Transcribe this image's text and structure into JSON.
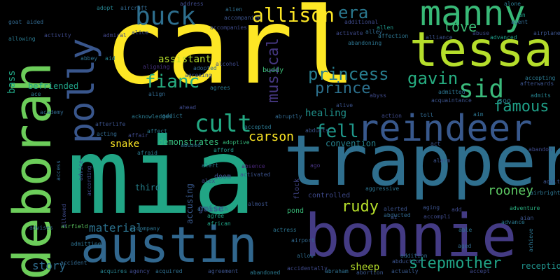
{
  "words": [
    {
      "text": "carl",
      "color": "#fde725"
    },
    {
      "text": "mia",
      "color": "#21a585"
    },
    {
      "text": "trapper",
      "color": "#2f6f8e"
    },
    {
      "text": "bonnie",
      "color": "#443b84"
    },
    {
      "text": "austin",
      "color": "#31678e"
    },
    {
      "text": "deborah",
      "color": "#6ccd5a"
    },
    {
      "text": "tessa",
      "color": "#b5de2b"
    },
    {
      "text": "reindeer",
      "color": "#38588c"
    },
    {
      "text": "polly",
      "color": "#39568c"
    },
    {
      "text": "manny",
      "color": "#38b977"
    },
    {
      "text": "buck",
      "color": "#2e6f8e"
    },
    {
      "text": "allison",
      "color": "#fde725"
    },
    {
      "text": "sid",
      "color": "#3ab97b"
    },
    {
      "text": "era",
      "color": "#2a788e"
    },
    {
      "text": "princess",
      "color": "#287d8e"
    },
    {
      "text": "prince",
      "color": "#2c718e"
    },
    {
      "text": "cult",
      "color": "#23a983"
    },
    {
      "text": "fianc",
      "color": "#27ad81"
    },
    {
      "text": "musical",
      "color": "#453781"
    },
    {
      "text": "gavin",
      "color": "#26ad81"
    },
    {
      "text": "love",
      "color": "#3bbb75"
    },
    {
      "text": "famous",
      "color": "#1fa088"
    },
    {
      "text": "fell",
      "color": "#1f988b"
    },
    {
      "text": "carson",
      "color": "#fde725"
    },
    {
      "text": "assistant",
      "color": "#b5de2b"
    },
    {
      "text": "healing",
      "color": "#20928c"
    },
    {
      "text": "rudy",
      "color": "#b5de2b"
    },
    {
      "text": "stepmother",
      "color": "#20a386"
    },
    {
      "text": "rooney",
      "color": "#5cc863"
    },
    {
      "text": "convention",
      "color": "#26828e"
    },
    {
      "text": "snake",
      "color": "#fde725"
    },
    {
      "text": "material",
      "color": "#2c728e"
    },
    {
      "text": "story",
      "color": "#2f6c8e"
    },
    {
      "text": "accusing",
      "color": "#38588c"
    },
    {
      "text": "guise",
      "color": "#3e4a89"
    },
    {
      "text": "sheep",
      "color": "#b5de2b"
    },
    {
      "text": "reception",
      "color": "#20928c"
    },
    {
      "text": "bass",
      "color": "#21a685"
    },
    {
      "text": "befriended",
      "color": "#1fa287"
    },
    {
      "text": "demonstrates",
      "color": "#35b779"
    },
    {
      "text": "third",
      "color": "#26828e"
    },
    {
      "text": "doom",
      "color": "#3b528b"
    },
    {
      "text": "controlled",
      "color": "#3e4989"
    },
    {
      "text": "pond",
      "color": "#38b977"
    },
    {
      "text": "flock",
      "color": "#414487"
    },
    {
      "text": "aggressive",
      "color": "#2c728e"
    },
    {
      "text": "adventure",
      "color": "#29af7f"
    },
    {
      "text": "ago",
      "color": "#46337e"
    },
    {
      "text": "act",
      "color": "#3b528b"
    },
    {
      "text": "airfield",
      "color": "#5ec962"
    },
    {
      "text": "admitting",
      "color": "#2d708e"
    },
    {
      "text": "advises",
      "color": "#31688e"
    },
    {
      "text": "accompany",
      "color": "#2c728e"
    },
    {
      "text": "acquires",
      "color": "#26828e"
    },
    {
      "text": "acquired",
      "color": "#2e6e8e"
    },
    {
      "text": "abandoned",
      "color": "#2a788e"
    },
    {
      "text": "abortion",
      "color": "#39568c"
    },
    {
      "text": "actually",
      "color": "#38588c"
    },
    {
      "text": "accidentally",
      "color": "#3e4989"
    },
    {
      "text": "abraham",
      "color": "#2e6e8e"
    },
    {
      "text": "allow",
      "color": "#2f6b8e"
    },
    {
      "text": "agreement",
      "color": "#3b528b"
    },
    {
      "text": "aftermath",
      "color": "#2f6b8e"
    },
    {
      "text": "african",
      "color": "#20a386"
    },
    {
      "text": "agree",
      "color": "#20a486"
    },
    {
      "text": "almost",
      "color": "#3b528b"
    },
    {
      "text": "absence",
      "color": "#482677"
    },
    {
      "text": "activated",
      "color": "#3b528b"
    },
    {
      "text": "accepted",
      "color": "#2a768e"
    },
    {
      "text": "abducts",
      "color": "#3b528b"
    },
    {
      "text": "abruptly",
      "color": "#31688e"
    },
    {
      "text": "acknowledges",
      "color": "#2a788e"
    },
    {
      "text": "addict",
      "color": "#2c738e"
    },
    {
      "text": "ahead",
      "color": "#3e4989"
    },
    {
      "text": "abused",
      "color": "#2c718e"
    },
    {
      "text": "afford",
      "color": "#1f968b"
    },
    {
      "text": "adoptive",
      "color": "#35b779"
    },
    {
      "text": "accompanied",
      "color": "#3b528b"
    },
    {
      "text": "buddy",
      "color": "#3bbb75"
    },
    {
      "text": "alcohol",
      "color": "#3e4989"
    },
    {
      "text": "aligning",
      "color": "#46327e"
    },
    {
      "text": "align",
      "color": "#31688e"
    },
    {
      "text": "abbey",
      "color": "#2d708e"
    },
    {
      "text": "aid",
      "color": "#26828e"
    },
    {
      "text": "adopt",
      "color": "#26828e"
    },
    {
      "text": "aircraft",
      "color": "#31688e"
    },
    {
      "text": "address",
      "color": "#3e4989"
    },
    {
      "text": "alien",
      "color": "#2e6e8e"
    },
    {
      "text": "goat",
      "color": "#31688e"
    },
    {
      "text": "aided",
      "color": "#31688e"
    },
    {
      "text": "allowing",
      "color": "#2a788e"
    },
    {
      "text": "activity",
      "color": "#3e4989"
    },
    {
      "text": "admiral",
      "color": "#414487"
    },
    {
      "text": "alice",
      "color": "#3b528b"
    },
    {
      "text": "alliance",
      "color": "#3b528b"
    },
    {
      "text": "alone",
      "color": "#2a788e"
    },
    {
      "text": "agent",
      "color": "#31688e"
    },
    {
      "text": "an",
      "color": "#1f9e89"
    },
    {
      "text": "airplane",
      "color": "#3b528b"
    },
    {
      "text": "advanced",
      "color": "#1f9e89"
    },
    {
      "text": "abuse",
      "color": "#3e4989"
    },
    {
      "text": "affection",
      "color": "#2c738e"
    },
    {
      "text": "allen",
      "color": "#1f968b"
    },
    {
      "text": "abandoning",
      "color": "#2c738e"
    },
    {
      "text": "activate",
      "color": "#3e4989"
    },
    {
      "text": "accepting",
      "color": "#2a788e"
    },
    {
      "text": "afterwards",
      "color": "#3b528b"
    },
    {
      "text": "admits",
      "color": "#26828e"
    },
    {
      "text": "admitted",
      "color": "#2c738e"
    },
    {
      "text": "acquaintance",
      "color": "#3b528b"
    },
    {
      "text": "soo",
      "color": "#2a788e"
    },
    {
      "text": "aim",
      "color": "#2c738e"
    },
    {
      "text": "toll",
      "color": "#31688e"
    },
    {
      "text": "action",
      "color": "#3e4989"
    },
    {
      "text": "alive",
      "color": "#3b528b"
    },
    {
      "text": "alley",
      "color": "#31688e"
    },
    {
      "text": "additional",
      "color": "#3e4989"
    },
    {
      "text": "accompanies",
      "color": "#3e4989"
    },
    {
      "text": "agreeing",
      "color": "#3b528b"
    },
    {
      "text": "adopted",
      "color": "#31688e"
    },
    {
      "text": "agrees",
      "color": "#2a788e"
    },
    {
      "text": "academy",
      "color": "#31688e"
    },
    {
      "text": "afterlife",
      "color": "#3b528b"
    },
    {
      "text": "acting",
      "color": "#31688e"
    },
    {
      "text": "affair",
      "color": "#3e4989"
    },
    {
      "text": "affect",
      "color": "#2a788e"
    },
    {
      "text": "afraid",
      "color": "#2a788e"
    },
    {
      "text": "advice",
      "color": "#3b528b"
    },
    {
      "text": "access",
      "color": "#31688e"
    },
    {
      "text": "adult",
      "color": "#3b528b"
    },
    {
      "text": "airbright",
      "color": "#2c738e"
    },
    {
      "text": "abandon",
      "color": "#3e4989"
    },
    {
      "text": "alarm",
      "color": "#3b528b"
    },
    {
      "text": "accompli",
      "color": "#3e4989"
    },
    {
      "text": "abducted",
      "color": "#31688e"
    },
    {
      "text": "alerted",
      "color": "#3b528b"
    },
    {
      "text": "addition",
      "color": "#31688e"
    },
    {
      "text": "abduction",
      "color": "#3b528b"
    },
    {
      "text": "aged",
      "color": "#31688e"
    },
    {
      "text": "aging",
      "color": "#3b528b"
    },
    {
      "text": "add",
      "color": "#3e4989"
    },
    {
      "text": "able",
      "color": "#2c738e"
    },
    {
      "text": "ai",
      "color": "#3b528b"
    },
    {
      "text": "accept",
      "color": "#3e4989"
    },
    {
      "text": "achieve",
      "color": "#2c738e"
    },
    {
      "text": "aian",
      "color": "#3b528b"
    },
    {
      "text": "advance",
      "color": "#2a788e"
    },
    {
      "text": "agency",
      "color": "#3e4989"
    },
    {
      "text": "accident",
      "color": "#31688e"
    },
    {
      "text": "allowed",
      "color": "#3e4989"
    },
    {
      "text": "actress",
      "color": "#2c738e"
    },
    {
      "text": "alex",
      "color": "#3e4989"
    },
    {
      "text": "alert",
      "color": "#2a788e"
    },
    {
      "text": "according",
      "color": "#3e4989"
    },
    {
      "text": "airport",
      "color": "#31688e"
    },
    {
      "text": "ace",
      "color": "#2a788e"
    },
    {
      "text": "abyss",
      "color": "#3e4989"
    }
  ]
}
